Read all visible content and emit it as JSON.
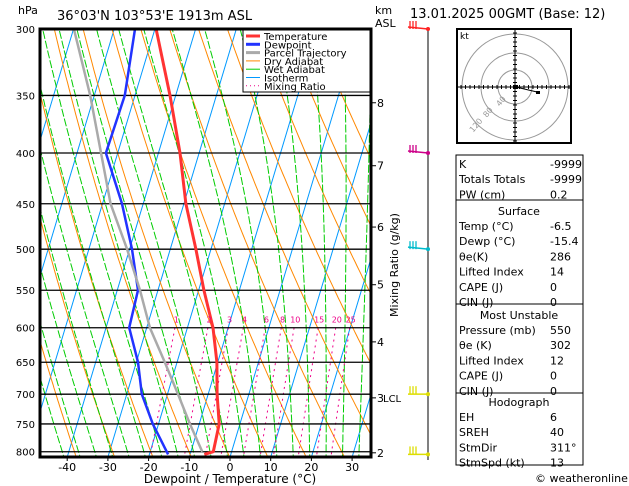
{
  "header": {
    "pressure_unit": "hPa",
    "location": "36°03'N 103°53'E 1913m ASL",
    "height_unit": "km",
    "height_ref": "ASL",
    "datetime": "13.01.2025 00GMT (Base: 12)"
  },
  "chart_data": {
    "type": "line",
    "title": "36°03'N 103°53'E 1913m ASL",
    "xlabel": "Dewpoint / Temperature (°C)",
    "ylabel": "hPa",
    "y2label": "Mixing Ratio (g/kg)",
    "ylim": [
      300,
      810
    ],
    "xlim_at_bottom": [
      -46,
      34
    ],
    "pressure_ticks": [
      300,
      350,
      400,
      450,
      500,
      550,
      600,
      650,
      700,
      750,
      800
    ],
    "temp_ticks": [
      -40,
      -30,
      -20,
      -10,
      0,
      10,
      20,
      30
    ],
    "km_ticks": [
      {
        "km": "8",
        "p": 356
      },
      {
        "km": "7",
        "p": 412
      },
      {
        "km": "6",
        "p": 475
      },
      {
        "km": "5",
        "p": 543
      },
      {
        "km": "4",
        "p": 620
      },
      {
        "km": "3",
        "p": 706
      },
      {
        "km": "2",
        "p": 802
      }
    ],
    "lcl": {
      "label": "LCL",
      "p": 706
    },
    "mixing_ratio_labels": [
      1,
      2,
      3,
      4,
      6,
      8,
      10,
      15,
      20,
      25
    ],
    "legend": {
      "placement": "top-right",
      "entries": [
        "Temperature",
        "Dewpoint",
        "Parcel Trajectory",
        "Dry Adiabat",
        "Wet Adiabat",
        "Isotherm",
        "Mixing Ratio"
      ]
    },
    "series": [
      {
        "name": "Temperature",
        "color": "#ff3333",
        "p": [
          300,
          350,
          400,
          450,
          500,
          550,
          600,
          650,
          700,
          750,
          800,
          805
        ],
        "T": [
          -49.7,
          -41.4,
          -34.7,
          -29.5,
          -23.7,
          -18.7,
          -13.7,
          -10.2,
          -7.8,
          -5.1,
          -4.5,
          -6.5
        ]
      },
      {
        "name": "Dewpoint",
        "color": "#2233ff",
        "p": [
          300,
          350,
          400,
          450,
          500,
          550,
          600,
          650,
          700,
          750,
          805
        ],
        "T": [
          -54.9,
          -52.5,
          -52.9,
          -45.2,
          -39.4,
          -34.9,
          -34.3,
          -29.6,
          -26.3,
          -21.4,
          -15.4
        ]
      },
      {
        "name": "Parcel Trajectory",
        "color": "#aaaaaa",
        "p": [
          300,
          350,
          450,
          500,
          550,
          600,
          650,
          700,
          750,
          800
        ],
        "T": [
          -69.9,
          -61.0,
          -48.0,
          -40.6,
          -34.4,
          -29.2,
          -23.0,
          -17.4,
          -12.3,
          -7.2
        ]
      }
    ]
  },
  "colors": {
    "temperature": "#ff3333",
    "dewpoint": "#2233ff",
    "parcel": "#aaaaaa",
    "dry_adiabat": "#ff8800",
    "wet_adiabat": "#00cc00",
    "isotherm": "#0099ff",
    "mixing_ratio": "#ee0088"
  },
  "wind_barbs": [
    {
      "p": 300,
      "color": "#ff2222"
    },
    {
      "p": 400,
      "color": "#cc0088"
    },
    {
      "p": 500,
      "color": "#00bbcc"
    },
    {
      "p": 700,
      "color": "#dddd00"
    },
    {
      "p": 805,
      "color": "#dddd00"
    }
  ],
  "hodograph": {
    "unit": "kt",
    "rings": [
      "40",
      "80",
      "120"
    ]
  },
  "indices": {
    "rows": [
      {
        "label": "K",
        "value": "-9999"
      },
      {
        "label": "Totals Totals",
        "value": "-9999"
      },
      {
        "label": "PW (cm)",
        "value": "0.2"
      }
    ]
  },
  "surface": {
    "title": "Surface",
    "rows": [
      {
        "label": "Temp (°C)",
        "value": "-6.5"
      },
      {
        "label": "Dewp (°C)",
        "value": "-15.4"
      },
      {
        "label": "θe(K)",
        "value": "286"
      },
      {
        "label": "Lifted Index",
        "value": "14"
      },
      {
        "label": "CAPE (J)",
        "value": "0"
      },
      {
        "label": "CIN (J)",
        "value": "0"
      }
    ]
  },
  "most_unstable": {
    "title": "Most Unstable",
    "rows": [
      {
        "label": "Pressure (mb)",
        "value": "550"
      },
      {
        "label": "θe (K)",
        "value": "302"
      },
      {
        "label": "Lifted Index",
        "value": "12"
      },
      {
        "label": "CAPE (J)",
        "value": "0"
      },
      {
        "label": "CIN (J)",
        "value": "0"
      }
    ]
  },
  "hodograph_stats": {
    "title": "Hodograph",
    "rows": [
      {
        "label": "EH",
        "value": "6"
      },
      {
        "label": "SREH",
        "value": "40"
      },
      {
        "label": "StmDir",
        "value": "311°"
      },
      {
        "label": "StmSpd (kt)",
        "value": "13"
      }
    ]
  },
  "copyright": "© weatheronline.co.uk"
}
